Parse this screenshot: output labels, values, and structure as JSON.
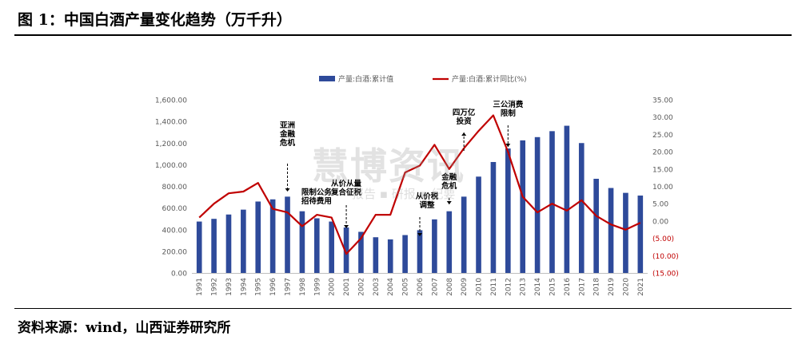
{
  "page": {
    "title": "图 1：中国白酒产量变化趋势（万千升）",
    "source": "资料来源：wind，山西证券研究所",
    "watermark": "慧博资讯",
    "watermark_sub": "报告 ▪ 研报 ▪ 纪要"
  },
  "chart_data": {
    "type": "bar",
    "categories": [
      "1991",
      "1992",
      "1993",
      "1994",
      "1995",
      "1996",
      "1997",
      "1998",
      "1999",
      "2000",
      "2001",
      "2002",
      "2003",
      "2004",
      "2005",
      "2006",
      "2007",
      "2008",
      "2009",
      "2010",
      "2011",
      "2012",
      "2013",
      "2014",
      "2015",
      "2016",
      "2017",
      "2018",
      "2019",
      "2020",
      "2021"
    ],
    "series": [
      {
        "name": "产量:白酒:累计值",
        "type": "bar",
        "axis": "left",
        "color": "#2E4A9A",
        "values": [
          475,
          500,
          540,
          585,
          660,
          680,
          705,
          570,
          505,
          475,
          420,
          380,
          330,
          310,
          350,
          395,
          495,
          570,
          705,
          890,
          1025,
          1150,
          1225,
          1255,
          1310,
          1360,
          1200,
          870,
          785,
          740,
          715
        ]
      },
      {
        "name": "产量:白酒:累计同比(%)",
        "type": "line",
        "axis": "right",
        "color": "#C00000",
        "values": [
          1.0,
          5.0,
          8.0,
          8.5,
          11.0,
          3.5,
          2.5,
          -1.5,
          1.8,
          1.0,
          -9.5,
          -5.0,
          1.8,
          1.8,
          14.0,
          16.0,
          22.0,
          15.0,
          21.0,
          26.0,
          30.5,
          20.0,
          7.0,
          2.5,
          5.0,
          3.0,
          6.0,
          1.5,
          -1.0,
          -2.5,
          -0.5
        ]
      }
    ],
    "y_left": {
      "min": 0,
      "max": 1600,
      "step": 200,
      "tick_labels": [
        "0.00",
        "200.00",
        "400.00",
        "600.00",
        "800.00",
        "1,000.00",
        "1,200.00",
        "1,400.00",
        "1,600.00"
      ]
    },
    "y_right": {
      "min": -15,
      "max": 35,
      "step": 5,
      "tick_labels": [
        "(15.00)",
        "(10.00)",
        "(5.00)",
        "0.00",
        "5.00",
        "10.00",
        "15.00",
        "20.00",
        "25.00",
        "30.00",
        "35.00"
      ],
      "negative_label_color": "#C00000"
    },
    "annotations": [
      {
        "text": "亚洲\n金融\n危机",
        "category": "1997"
      },
      {
        "text": "限制公务\n招待费用",
        "category": "1998"
      },
      {
        "text": "从价从量\n复合征税",
        "category": "2001"
      },
      {
        "text": "从价税\n调整",
        "category": "2006"
      },
      {
        "text": "金融\n危机",
        "category": "2008"
      },
      {
        "text": "四万亿\n投资",
        "category": "2009"
      },
      {
        "text": "三公消费\n限制",
        "category": "2012"
      }
    ],
    "legend_position": "top",
    "grid": false
  }
}
